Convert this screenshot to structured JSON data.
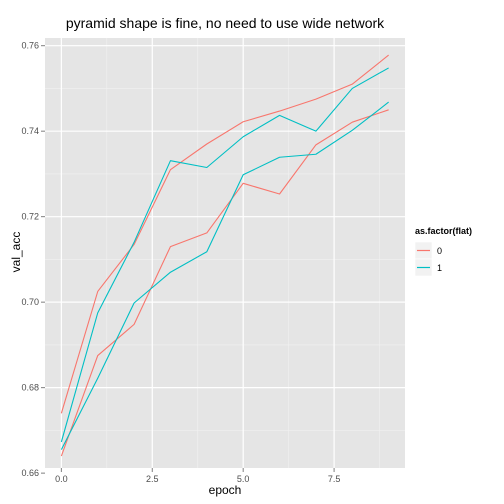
{
  "chart_data": {
    "type": "line",
    "title": "pyramid shape is fine, no need to use wide network",
    "xlabel": "epoch",
    "ylabel": "val_acc",
    "xlim": [
      -0.45,
      9.45
    ],
    "ylim": [
      0.6612,
      0.7618
    ],
    "x_ticks": [
      0,
      2.5,
      5,
      7.5
    ],
    "x_tick_labels": [
      "0.0",
      "2.5",
      "5.0",
      "7.5"
    ],
    "y_ticks": [
      0.66,
      0.68,
      0.7,
      0.72,
      0.74,
      0.76
    ],
    "y_tick_labels": [
      "0.66",
      "0.68",
      "0.70",
      "0.72",
      "0.74",
      "0.76"
    ],
    "grid": true,
    "legend": {
      "title": "as.factor(flat)",
      "placement": "right",
      "entries": [
        {
          "label": "0",
          "color": "#F8766D"
        },
        {
          "label": "1",
          "color": "#00BFC4"
        }
      ]
    },
    "series": [
      {
        "color": "#F8766D",
        "x": [
          0,
          1,
          2,
          3,
          4,
          5,
          6,
          7,
          8,
          9
        ],
        "y": [
          0.674,
          0.7025,
          0.7135,
          0.731,
          0.737,
          0.7422,
          0.7447,
          0.7475,
          0.751,
          0.7578
        ]
      },
      {
        "color": "#F8766D",
        "x": [
          0,
          1,
          2,
          3,
          4,
          5,
          6,
          7,
          8,
          9
        ],
        "y": [
          0.664,
          0.6875,
          0.6948,
          0.713,
          0.7162,
          0.7278,
          0.7253,
          0.7368,
          0.7421,
          0.745
        ]
      },
      {
        "color": "#00BFC4",
        "x": [
          0,
          1,
          2,
          3,
          4,
          5,
          6,
          7,
          8,
          9
        ],
        "y": [
          0.6673,
          0.6975,
          0.714,
          0.7331,
          0.7315,
          0.7387,
          0.7437,
          0.74,
          0.75,
          0.7548
        ]
      },
      {
        "color": "#00BFC4",
        "x": [
          0,
          1,
          2,
          3,
          4,
          5,
          6,
          7,
          8,
          9
        ],
        "y": [
          0.6655,
          0.6822,
          0.6998,
          0.707,
          0.7118,
          0.7298,
          0.7339,
          0.7346,
          0.7402,
          0.7468
        ]
      }
    ]
  }
}
